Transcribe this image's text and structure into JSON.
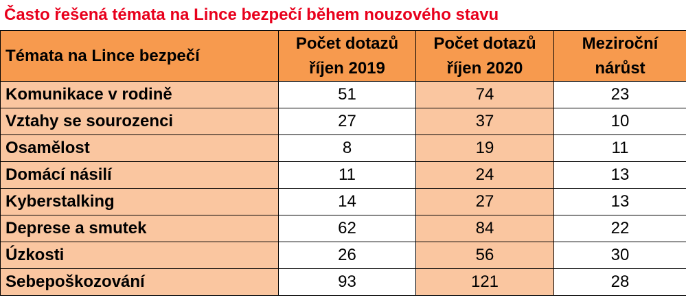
{
  "title": "Často řešená témata na Lince bezpečí během nouzového stavu",
  "headers": {
    "topic": "Témata na Lince bezpečí",
    "count_2019": [
      "Počet dotazů",
      "říjen 2019"
    ],
    "count_2020": [
      "Počet dotazů",
      "říjen 2020"
    ],
    "growth": [
      "Meziroční",
      "nárůst"
    ]
  },
  "rows": [
    {
      "topic": "Komunikace v rodině",
      "v2019": "51",
      "v2020": "74",
      "growth": "23"
    },
    {
      "topic": "Vztahy se sourozenci",
      "v2019": "27",
      "v2020": "37",
      "growth": "10"
    },
    {
      "topic": "Osamělost",
      "v2019": "8",
      "v2020": "19",
      "growth": "11"
    },
    {
      "topic": "Domácí násilí",
      "v2019": "11",
      "v2020": "24",
      "growth": "13"
    },
    {
      "topic": "Kyberstalking",
      "v2019": "14",
      "v2020": "27",
      "growth": "13"
    },
    {
      "topic": "Deprese a smutek",
      "v2019": "62",
      "v2020": "84",
      "growth": "22"
    },
    {
      "topic": "Úzkosti",
      "v2019": "26",
      "v2020": "56",
      "growth": "30"
    },
    {
      "topic": "Sebepoškozování",
      "v2019": "93",
      "v2020": "121",
      "growth": "28"
    }
  ],
  "colors": {
    "title": "#e8001c",
    "header_bg": "#f79a4e",
    "light_orange": "#fac6a0",
    "white": "#ffffff"
  }
}
